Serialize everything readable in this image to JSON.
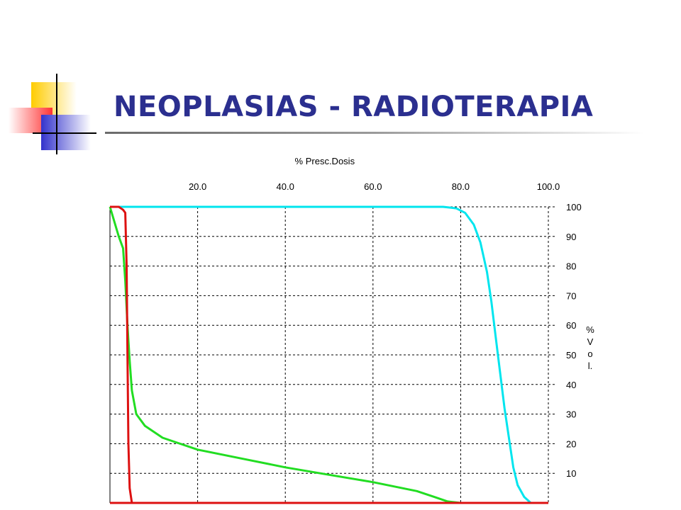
{
  "slide": {
    "title": "NEOPLASIAS - RADIOTERAPIA"
  },
  "chart_data": {
    "type": "line",
    "xlabel": "% Presc.Dosis",
    "ylabel": "% Vol.",
    "ylabel_chars": [
      "%",
      "V",
      "o",
      "l."
    ],
    "xlim": [
      0,
      100
    ],
    "ylim": [
      0,
      100
    ],
    "x_ticks": [
      "20.0",
      "40.0",
      "60.0",
      "80.0",
      "100.0"
    ],
    "x_tick_values": [
      20,
      40,
      60,
      80,
      100
    ],
    "y_ticks": [
      "100",
      "90",
      "80",
      "70",
      "60",
      "50",
      "40",
      "30",
      "20",
      "10"
    ],
    "y_tick_values": [
      100,
      90,
      80,
      70,
      60,
      50,
      40,
      30,
      20,
      10
    ],
    "grid": true,
    "series": [
      {
        "color": "#00e5ee",
        "points": [
          [
            0,
            100
          ],
          [
            76,
            100
          ],
          [
            79,
            99.5
          ],
          [
            81,
            98
          ],
          [
            83,
            94
          ],
          [
            84.5,
            88
          ],
          [
            86,
            78
          ],
          [
            87,
            68
          ],
          [
            88,
            56
          ],
          [
            89,
            44
          ],
          [
            90,
            32
          ],
          [
            91,
            22
          ],
          [
            92,
            12
          ],
          [
            93,
            6
          ],
          [
            94.5,
            2
          ],
          [
            96,
            0
          ]
        ]
      },
      {
        "color": "#22dd22",
        "points": [
          [
            0,
            100
          ],
          [
            1,
            95
          ],
          [
            2,
            90
          ],
          [
            3,
            86
          ],
          [
            3.5,
            75
          ],
          [
            4,
            60
          ],
          [
            4.5,
            48
          ],
          [
            5,
            38
          ],
          [
            6,
            30
          ],
          [
            8,
            26
          ],
          [
            12,
            22
          ],
          [
            20,
            18
          ],
          [
            30,
            15
          ],
          [
            40,
            12
          ],
          [
            50,
            9.5
          ],
          [
            60,
            7
          ],
          [
            70,
            4
          ],
          [
            74,
            2
          ],
          [
            77,
            0.5
          ],
          [
            80,
            0
          ]
        ]
      },
      {
        "color": "#dd1111",
        "points": [
          [
            0,
            100
          ],
          [
            2,
            100
          ],
          [
            3,
            99
          ],
          [
            3.5,
            98
          ],
          [
            3.8,
            80
          ],
          [
            4,
            50
          ],
          [
            4.2,
            20
          ],
          [
            4.5,
            5
          ],
          [
            5,
            0
          ]
        ]
      }
    ]
  }
}
